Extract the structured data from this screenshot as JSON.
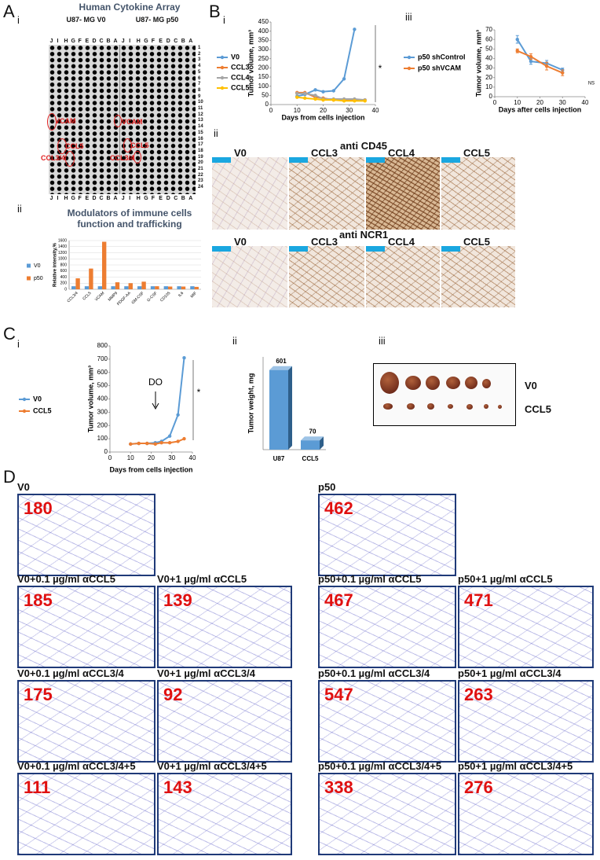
{
  "panel_labels": {
    "A": "A",
    "A_i": "i",
    "A_ii": "ii",
    "B": "B",
    "B_i": "i",
    "B_ii": "ii",
    "B_iii": "iii",
    "C": "C",
    "C_i": "i",
    "C_ii": "ii",
    "C_iii": "iii",
    "D": "D"
  },
  "array": {
    "title": "Human Cytokine Array",
    "left": "U87- MG V0",
    "right": "U87- MG p50",
    "columns": [
      "J",
      "I",
      "H",
      "G",
      "F",
      "E",
      "D",
      "C",
      "B",
      "A"
    ],
    "rows": [
      1,
      2,
      3,
      4,
      5,
      6,
      7,
      8,
      9,
      10,
      11,
      12,
      13,
      14,
      15,
      16,
      17,
      18,
      19,
      20,
      21,
      22,
      23,
      24
    ],
    "labels": [
      "VCAM",
      "CCL5",
      "CCL3/4"
    ]
  },
  "immune_title": "Modulators of immune cells function and trafficking",
  "staining": {
    "cd45_title": "anti CD45",
    "ncr1_title": "anti NCR1",
    "groups": [
      "V0",
      "CCL3",
      "CCL4",
      "CCL5"
    ]
  },
  "tumors": {
    "rows": [
      "V0",
      "CCL5"
    ]
  },
  "migration": [
    {
      "label": "V0",
      "count": 180
    },
    {
      "label": "p50",
      "count": 462
    },
    {
      "label": "V0+0.1 µg/ml αCCL5",
      "count": 185
    },
    {
      "label": "V0+1 µg/ml αCCL5",
      "count": 139
    },
    {
      "label": "p50+0.1 µg/ml αCCL5",
      "count": 467
    },
    {
      "label": "p50+1 µg/ml αCCL5",
      "count": 471
    },
    {
      "label": "V0+0.1 µg/ml αCCL3/4",
      "count": 175
    },
    {
      "label": "V0+1 µg/ml αCCL3/4",
      "count": 92
    },
    {
      "label": "p50+0.1 µg/ml αCCL3/4",
      "count": 547
    },
    {
      "label": "p50+1 µg/ml αCCL3/4",
      "count": 263
    },
    {
      "label": "V0+0.1 µg/ml αCCL3/4+5",
      "count": 111
    },
    {
      "label": "V0+1 µg/ml αCCL3/4+5",
      "count": 143
    },
    {
      "label": "p50+0.1 µg/ml αCCL3/4+5",
      "count": 338
    },
    {
      "label": "p50+1 µg/ml αCCL3/4+5",
      "count": 276
    }
  ],
  "chart_data": [
    {
      "type": "bar",
      "y_label": "Relative intensity,%",
      "categories": [
        "CCL3/4",
        "CCL5",
        "VCAM",
        "MMP9",
        "PDGF-AA",
        "GM-CSF",
        "G-CSF",
        "CD105",
        "IL6",
        "MIF"
      ],
      "series": [
        {
          "name": "V0",
          "color": "#5b9bd5",
          "values": [
            100,
            100,
            100,
            100,
            100,
            100,
            100,
            100,
            100,
            100
          ]
        },
        {
          "name": "p50",
          "color": "#ed7d31",
          "values": [
            360,
            680,
            1560,
            230,
            200,
            250,
            100,
            90,
            90,
            80
          ]
        }
      ],
      "ylim": [
        0,
        1600
      ],
      "yticks": [
        0,
        200,
        400,
        600,
        800,
        1000,
        1200,
        1400,
        1600
      ],
      "grid": true
    },
    {
      "type": "line",
      "y_label": "Tumor volume, mm³",
      "x_label": "Days from cells injection",
      "x": [
        10,
        13,
        17,
        20,
        24,
        28,
        32,
        36
      ],
      "series": [
        {
          "name": "V0",
          "color": "#5b9bd5",
          "values": [
            45,
            55,
            80,
            70,
            75,
            140,
            410,
            null
          ]
        },
        {
          "name": "CCL3",
          "color": "#ed7d31",
          "values": [
            65,
            65,
            40,
            35,
            25,
            25,
            25,
            25
          ]
        },
        {
          "name": "CCL4",
          "color": "#a5a5a5",
          "values": [
            60,
            60,
            50,
            30,
            30,
            30,
            30,
            25
          ]
        },
        {
          "name": "CCL5",
          "color": "#ffc000",
          "values": [
            40,
            35,
            30,
            25,
            25,
            20,
            20,
            20
          ]
        }
      ],
      "xlim": [
        0,
        40
      ],
      "xticks": [
        0,
        10,
        20,
        30,
        40
      ],
      "ylim": [
        0,
        450
      ],
      "yticks": [
        0,
        50,
        100,
        150,
        200,
        250,
        300,
        350,
        400,
        450
      ],
      "annotations": [
        "*"
      ]
    },
    {
      "type": "line",
      "y_label": "Tumor volume, mm³",
      "x_label": "Days after cells injection",
      "x": [
        10,
        16,
        23,
        30
      ],
      "series": [
        {
          "name": "p50 shControl",
          "color": "#5b9bd5",
          "values": [
            60,
            37,
            35,
            28
          ],
          "errors": [
            4,
            3,
            3,
            2
          ]
        },
        {
          "name": "p50 shVCAM",
          "color": "#ed7d31",
          "values": [
            48,
            42,
            32,
            25
          ],
          "errors": [
            2,
            3,
            4,
            3
          ]
        }
      ],
      "xlim": [
        0,
        40
      ],
      "xticks": [
        0,
        10,
        20,
        30,
        40
      ],
      "ylim": [
        0,
        70
      ],
      "yticks": [
        0,
        10,
        20,
        30,
        40,
        50,
        60,
        70
      ],
      "annotations": [
        "NS"
      ]
    },
    {
      "type": "line",
      "y_label": "Tumor volume, mm³",
      "x_label": "Days from cells injection",
      "x": [
        10,
        14,
        18,
        22,
        25,
        29,
        33,
        36
      ],
      "series": [
        {
          "name": "V0",
          "color": "#5b9bd5",
          "values": [
            60,
            65,
            65,
            70,
            80,
            120,
            280,
            710
          ]
        },
        {
          "name": "CCL5",
          "color": "#ed7d31",
          "values": [
            60,
            65,
            65,
            60,
            70,
            70,
            80,
            100
          ]
        }
      ],
      "xlim": [
        0,
        40
      ],
      "xticks": [
        0,
        10,
        20,
        30,
        40
      ],
      "ylim": [
        0,
        800
      ],
      "yticks": [
        0,
        100,
        200,
        300,
        400,
        500,
        600,
        700,
        800
      ],
      "annotations": [
        "DO",
        "*"
      ]
    },
    {
      "type": "bar3d",
      "y_label": "Tumor weight, mg",
      "categories": [
        "U87",
        "CCL5"
      ],
      "values": [
        601,
        70
      ],
      "color": "#5b9bd5",
      "ylim": [
        0,
        700
      ]
    }
  ]
}
